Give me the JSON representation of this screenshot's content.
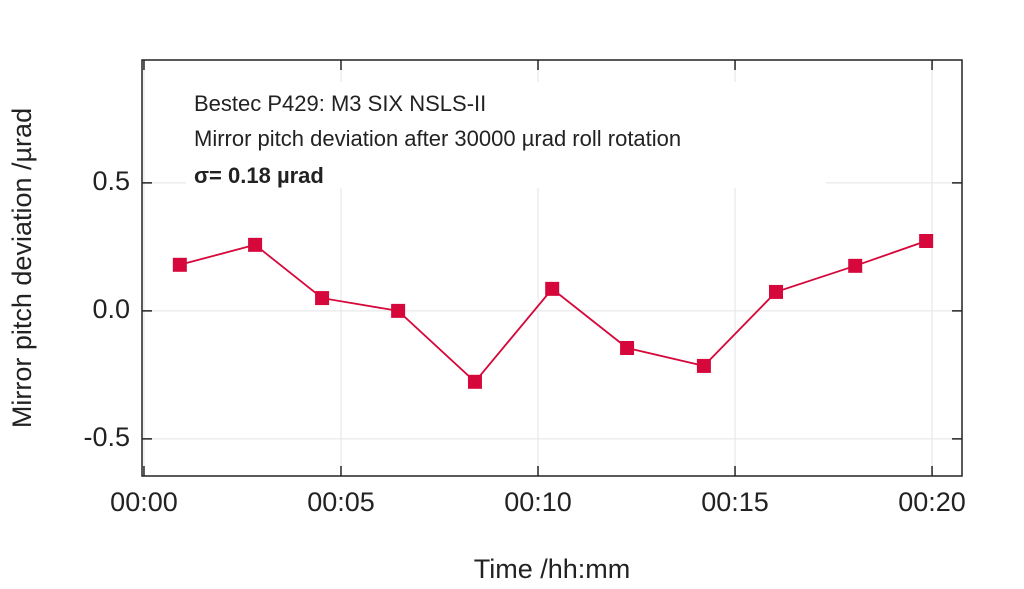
{
  "chart_data": {
    "type": "line",
    "annotations": [
      "Bestec P429: M3 SIX NSLS-II",
      "Mirror pitch deviation after 30000 µrad roll rotation",
      "σ= 0.18 µrad"
    ],
    "x_label": "Time /hh:mm",
    "y_label": "Mirror pitch deviation /µrad",
    "x": [
      0.91,
      2.82,
      4.52,
      6.45,
      8.4,
      10.36,
      12.26,
      14.21,
      16.04,
      18.05,
      19.85
    ],
    "series": [
      {
        "color": "#d6083b",
        "values": [
          0.18,
          0.258,
          0.05,
          0.0,
          -0.277,
          0.086,
          -0.145,
          -0.215,
          0.074,
          0.176,
          0.273
        ]
      }
    ],
    "xlim": [
      -0.05,
      20.76
    ],
    "xticks": [
      {
        "value": 0,
        "label": "00:00"
      },
      {
        "value": 5,
        "label": "00:05"
      },
      {
        "value": 10,
        "label": "00:10"
      },
      {
        "value": 15,
        "label": "00:15"
      },
      {
        "value": 20,
        "label": "00:20"
      }
    ],
    "ylim": [
      -0.645,
      0.98
    ],
    "yticks": [
      0.5,
      {
        "value": 0,
        "label": "0.0"
      },
      -0.5
    ],
    "grid": true
  }
}
